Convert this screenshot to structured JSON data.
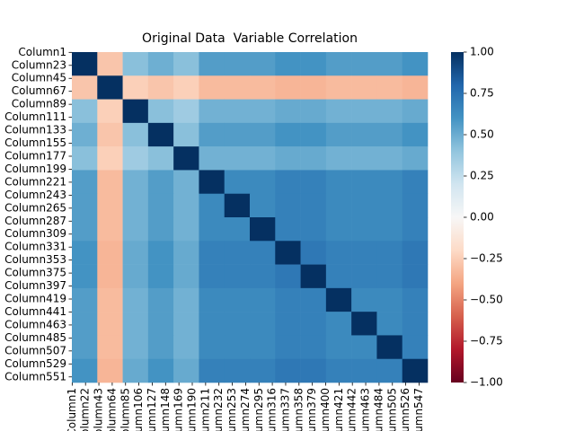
{
  "chart_data": {
    "type": "heatmap",
    "title": "Original Data  Variable Correlation",
    "xlim": [
      0,
      560
    ],
    "ylim": [
      0,
      560
    ],
    "bins": [
      0,
      40,
      80,
      120,
      160,
      200,
      240,
      280,
      320,
      360,
      400,
      440,
      480,
      520,
      560
    ],
    "xticks": [
      {
        "value": 0.5,
        "label": "Column1"
      },
      {
        "value": 21.5,
        "label": "Column22"
      },
      {
        "value": 42.5,
        "label": "Column43"
      },
      {
        "value": 63.5,
        "label": "Column64"
      },
      {
        "value": 84.5,
        "label": "Column85"
      },
      {
        "value": 105.5,
        "label": "Column106"
      },
      {
        "value": 126.5,
        "label": "Column127"
      },
      {
        "value": 147.5,
        "label": "Column148"
      },
      {
        "value": 168.5,
        "label": "Column169"
      },
      {
        "value": 189.5,
        "label": "Column190"
      },
      {
        "value": 210.5,
        "label": "Column211"
      },
      {
        "value": 231.5,
        "label": "Column232"
      },
      {
        "value": 252.5,
        "label": "Column253"
      },
      {
        "value": 273.5,
        "label": "Column274"
      },
      {
        "value": 294.5,
        "label": "Column295"
      },
      {
        "value": 315.5,
        "label": "Column316"
      },
      {
        "value": 336.5,
        "label": "Column337"
      },
      {
        "value": 357.5,
        "label": "Column358"
      },
      {
        "value": 378.5,
        "label": "Column379"
      },
      {
        "value": 399.5,
        "label": "Column400"
      },
      {
        "value": 420.5,
        "label": "Column421"
      },
      {
        "value": 441.5,
        "label": "Column442"
      },
      {
        "value": 462.5,
        "label": "Column463"
      },
      {
        "value": 483.5,
        "label": "Column484"
      },
      {
        "value": 504.5,
        "label": "Column505"
      },
      {
        "value": 525.5,
        "label": "Column526"
      },
      {
        "value": 546.5,
        "label": "Column547"
      }
    ],
    "yticks": [
      {
        "value": 0.5,
        "label": "Column1"
      },
      {
        "value": 22.5,
        "label": "Column23"
      },
      {
        "value": 44.5,
        "label": "Column45"
      },
      {
        "value": 66.5,
        "label": "Column67"
      },
      {
        "value": 88.5,
        "label": "Column89"
      },
      {
        "value": 110.5,
        "label": "Column111"
      },
      {
        "value": 132.5,
        "label": "Column133"
      },
      {
        "value": 154.5,
        "label": "Column155"
      },
      {
        "value": 176.5,
        "label": "Column177"
      },
      {
        "value": 198.5,
        "label": "Column199"
      },
      {
        "value": 220.5,
        "label": "Column221"
      },
      {
        "value": 242.5,
        "label": "Column243"
      },
      {
        "value": 264.5,
        "label": "Column265"
      },
      {
        "value": 286.5,
        "label": "Column287"
      },
      {
        "value": 308.5,
        "label": "Column309"
      },
      {
        "value": 330.5,
        "label": "Column331"
      },
      {
        "value": 352.5,
        "label": "Column353"
      },
      {
        "value": 374.5,
        "label": "Column375"
      },
      {
        "value": 396.5,
        "label": "Column397"
      },
      {
        "value": 418.5,
        "label": "Column419"
      },
      {
        "value": 440.5,
        "label": "Column441"
      },
      {
        "value": 462.5,
        "label": "Column463"
      },
      {
        "value": 484.5,
        "label": "Column485"
      },
      {
        "value": 506.5,
        "label": "Column507"
      },
      {
        "value": 528.5,
        "label": "Column529"
      },
      {
        "value": 550.5,
        "label": "Column551"
      }
    ],
    "z": [
      [
        1,
        -0.28,
        0.42,
        0.49,
        0.42,
        0.56,
        0.56,
        0.56,
        0.6,
        0.6,
        0.56,
        0.56,
        0.56,
        0.6
      ],
      [
        -0.28,
        1,
        -0.24,
        -0.28,
        -0.24,
        -0.32,
        -0.32,
        -0.32,
        -0.34,
        -0.34,
        -0.32,
        -0.32,
        -0.32,
        -0.34
      ],
      [
        0.42,
        -0.24,
        1,
        0.42,
        0.36,
        0.48,
        0.48,
        0.48,
        0.51,
        0.51,
        0.48,
        0.48,
        0.48,
        0.51
      ],
      [
        0.49,
        -0.28,
        0.42,
        1,
        0.42,
        0.56,
        0.56,
        0.56,
        0.6,
        0.6,
        0.56,
        0.56,
        0.56,
        0.6
      ],
      [
        0.42,
        -0.24,
        0.36,
        0.42,
        1,
        0.48,
        0.48,
        0.48,
        0.51,
        0.51,
        0.48,
        0.48,
        0.48,
        0.51
      ],
      [
        0.56,
        -0.32,
        0.48,
        0.56,
        0.48,
        1,
        0.64,
        0.64,
        0.68,
        0.68,
        0.64,
        0.64,
        0.64,
        0.68
      ],
      [
        0.56,
        -0.32,
        0.48,
        0.56,
        0.48,
        0.64,
        1,
        0.64,
        0.68,
        0.68,
        0.64,
        0.64,
        0.64,
        0.68
      ],
      [
        0.56,
        -0.32,
        0.48,
        0.56,
        0.48,
        0.64,
        0.64,
        1,
        0.68,
        0.68,
        0.64,
        0.64,
        0.64,
        0.68
      ],
      [
        0.6,
        -0.34,
        0.51,
        0.6,
        0.51,
        0.68,
        0.68,
        0.68,
        1,
        0.72,
        0.68,
        0.68,
        0.68,
        0.72
      ],
      [
        0.6,
        -0.34,
        0.51,
        0.6,
        0.51,
        0.68,
        0.68,
        0.68,
        0.72,
        1,
        0.68,
        0.68,
        0.68,
        0.72
      ],
      [
        0.56,
        -0.32,
        0.48,
        0.56,
        0.48,
        0.64,
        0.64,
        0.64,
        0.68,
        0.68,
        1,
        0.64,
        0.64,
        0.68
      ],
      [
        0.56,
        -0.32,
        0.48,
        0.56,
        0.48,
        0.64,
        0.64,
        0.64,
        0.68,
        0.68,
        0.64,
        1,
        0.64,
        0.68
      ],
      [
        0.56,
        -0.32,
        0.48,
        0.56,
        0.48,
        0.64,
        0.64,
        0.64,
        0.68,
        0.68,
        0.64,
        0.64,
        1,
        0.68
      ],
      [
        0.6,
        -0.34,
        0.51,
        0.6,
        0.51,
        0.68,
        0.68,
        0.68,
        0.72,
        0.72,
        0.68,
        0.68,
        0.68,
        1
      ]
    ],
    "clim": [
      -1,
      1
    ],
    "cticks": [
      {
        "value": 1,
        "label": "1.00"
      },
      {
        "value": 0.75,
        "label": "0.75"
      },
      {
        "value": 0.5,
        "label": "0.50"
      },
      {
        "value": 0.25,
        "label": "0.25"
      },
      {
        "value": 0,
        "label": "0.00"
      },
      {
        "value": -0.25,
        "label": "−0.25"
      },
      {
        "value": -0.5,
        "label": "−0.50"
      },
      {
        "value": -0.75,
        "label": "−0.75"
      },
      {
        "value": -1,
        "label": "−1.00"
      }
    ],
    "colormap": [
      "#67001f",
      "#b2182b",
      "#d6604d",
      "#f4a582",
      "#fddbc7",
      "#f7f7f7",
      "#d1e5f0",
      "#92c5de",
      "#4393c3",
      "#2166ac",
      "#053061"
    ]
  }
}
